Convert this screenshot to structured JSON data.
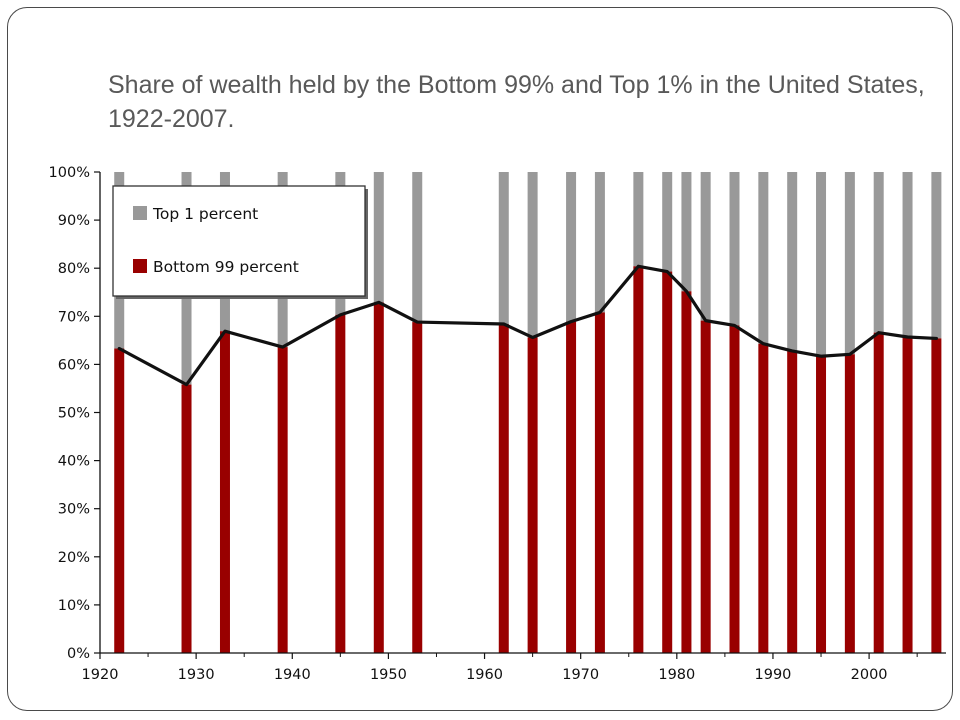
{
  "slide": {
    "title": "Share of wealth held by the Bottom 99% and Top 1% in the United States, 1922-2007."
  },
  "chart_data": {
    "type": "bar",
    "stacked": true,
    "title": "Share of wealth held by the Bottom 99% and Top 1% in the United States, 1922-2007.",
    "xlabel": "",
    "ylabel": "",
    "x": [
      1922,
      1929,
      1933,
      1939,
      1945,
      1949,
      1953,
      1962,
      1965,
      1969,
      1972,
      1976,
      1979,
      1981,
      1983,
      1986,
      1989,
      1992,
      1995,
      1998,
      2001,
      2004,
      2007
    ],
    "series": [
      {
        "name": "Bottom 99 percent",
        "color": "#990000",
        "values": [
          63.3,
          55.8,
          66.9,
          63.6,
          70.3,
          72.9,
          68.8,
          68.4,
          65.6,
          68.9,
          70.8,
          80.4,
          79.3,
          75.2,
          69.1,
          68.1,
          64.3,
          62.8,
          61.7,
          62.1,
          66.6,
          65.7,
          65.4
        ]
      },
      {
        "name": "Top 1 percent",
        "color": "#999999",
        "values": [
          36.7,
          44.2,
          33.1,
          36.4,
          29.7,
          27.1,
          31.2,
          31.6,
          34.4,
          31.1,
          29.2,
          19.6,
          20.7,
          24.8,
          30.9,
          31.9,
          35.7,
          37.2,
          38.3,
          37.9,
          33.4,
          34.3,
          34.6
        ]
      }
    ],
    "trend_line_series": "Bottom 99 percent",
    "ylim": [
      0,
      100
    ],
    "y_ticks": [
      0,
      10,
      20,
      30,
      40,
      50,
      60,
      70,
      80,
      90,
      100
    ],
    "y_tick_labels": [
      "0%",
      "10%",
      "20%",
      "30%",
      "40%",
      "50%",
      "60%",
      "70%",
      "80%",
      "90%",
      "100%"
    ],
    "xlim": [
      1920,
      2008
    ],
    "x_ticks": [
      1920,
      1930,
      1940,
      1950,
      1960,
      1970,
      1980,
      1990,
      2000
    ],
    "x_tick_labels": [
      "1920",
      "1930",
      "1940",
      "1950",
      "1960",
      "1970",
      "1980",
      "1990",
      "2000"
    ],
    "legend": {
      "position": "top-left",
      "entries": [
        {
          "label": "Top 1 percent",
          "color": "#999999"
        },
        {
          "label": "Bottom 99 percent",
          "color": "#990000"
        }
      ]
    },
    "grid": false
  }
}
